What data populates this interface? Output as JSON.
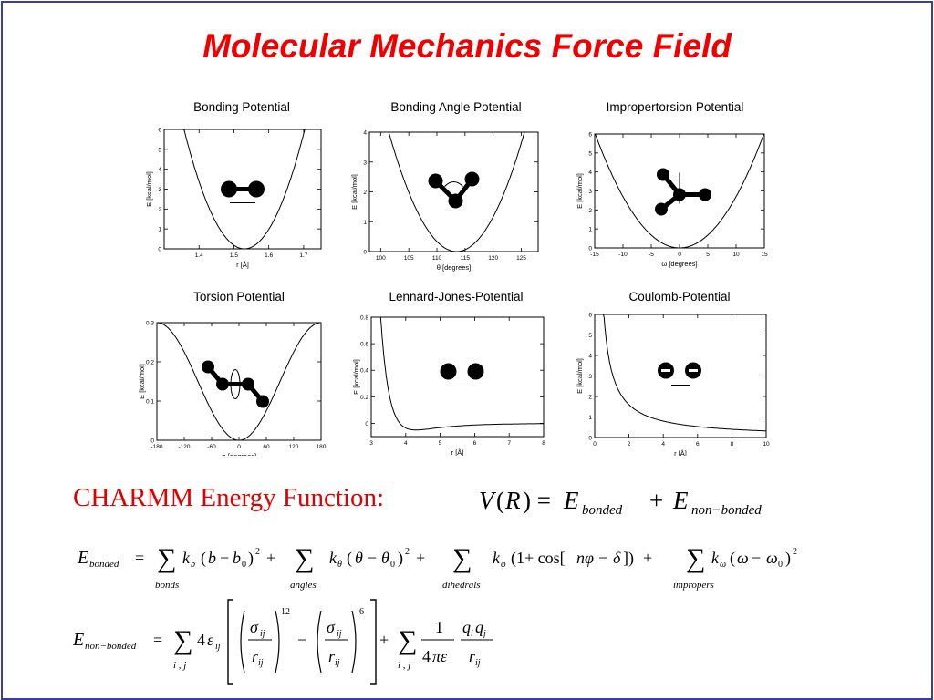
{
  "title": "Molecular Mechanics Force Field",
  "charmm_label": "CHARMM Energy Function:",
  "colors": {
    "title": "#f00000",
    "label": "#e00000",
    "border": "#3a3aa8"
  },
  "chart_data": [
    {
      "type": "line",
      "title": "Bonding Potential",
      "xlabel": "r [Å]",
      "ylabel": "E [kcal/mol]",
      "xlim": [
        1.3,
        1.75
      ],
      "ylim": [
        0,
        6
      ],
      "xticks": [
        "1.4",
        "1.5",
        "1.6",
        "1.7"
      ],
      "yticks": [
        "0",
        "1",
        "2",
        "3",
        "4",
        "5",
        "6"
      ],
      "curve": {
        "kind": "harmonic",
        "x0": 1.53,
        "k": 200
      },
      "icon": "bond"
    },
    {
      "type": "line",
      "title": "Bonding Angle Potential",
      "xlabel": "θ [degrees]",
      "ylabel": "E [kcal/mol]",
      "xlim": [
        98,
        128
      ],
      "ylim": [
        0,
        4
      ],
      "xticks": [
        "100",
        "105",
        "110",
        "115",
        "120",
        "125"
      ],
      "yticks": [
        "0",
        "1",
        "2",
        "3",
        "4"
      ],
      "curve": {
        "kind": "harmonic",
        "x0": 113.5,
        "k": 0.0275
      },
      "icon": "angle"
    },
    {
      "type": "line",
      "title": "Impropertorsion Potential",
      "xlabel": "ω [degrees]",
      "ylabel": "E [kcal/mol]",
      "xlim": [
        -15,
        15
      ],
      "ylim": [
        0,
        6
      ],
      "xticks": [
        "-15",
        "-10",
        "-5",
        "0",
        "5",
        "10",
        "15"
      ],
      "yticks": [
        "0",
        "1",
        "2",
        "3",
        "4",
        "5",
        "6"
      ],
      "curve": {
        "kind": "harmonic",
        "x0": 0,
        "k": 0.027
      },
      "icon": "improper"
    },
    {
      "type": "line",
      "title": "Torsion Potential",
      "xlabel": "φ [degrees]",
      "ylabel": "E [kcal/mol]",
      "xlim": [
        -180,
        180
      ],
      "ylim": [
        0,
        0.3
      ],
      "xticks": [
        "-180",
        "-120",
        "-60",
        "0",
        "60",
        "120",
        "180"
      ],
      "yticks": [
        "0",
        "0.1",
        "0.2",
        "0.3"
      ],
      "curve": {
        "kind": "cosine",
        "amp": 0.15
      },
      "icon": "torsion"
    },
    {
      "type": "line",
      "title": "Lennard-Jones-Potential",
      "xlabel": "r [Å]",
      "ylabel": "E [kcal/mol]",
      "xlim": [
        3,
        8
      ],
      "ylim": [
        -0.1,
        0.8
      ],
      "xticks": [
        "3",
        "4",
        "5",
        "6",
        "7",
        "8"
      ],
      "yticks": [
        "0",
        "0.2",
        "0.4",
        "0.6",
        "0.8"
      ],
      "curve": {
        "kind": "lj",
        "eps": 0.05,
        "rmin": 4.3
      },
      "icon": "lj"
    },
    {
      "type": "line",
      "title": "Coulomb-Potential",
      "xlabel": "r [Å]",
      "ylabel": "E [kcal/mol]",
      "xlim": [
        0,
        10
      ],
      "ylim": [
        0,
        6
      ],
      "xticks": [
        "0",
        "2",
        "4",
        "6",
        "8",
        "10"
      ],
      "yticks": [
        "0",
        "1",
        "2",
        "3",
        "4",
        "5",
        "6"
      ],
      "curve": {
        "kind": "coulomb",
        "k": 3.2
      },
      "icon": "coulomb"
    }
  ]
}
